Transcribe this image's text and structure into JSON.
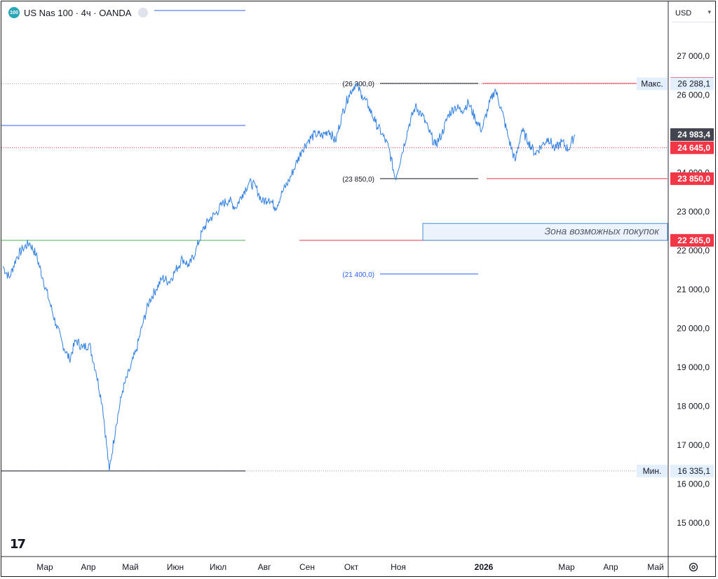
{
  "header": {
    "logo_text": "100",
    "symbol": "US Nas 100 · 4ч · OANDA"
  },
  "currency_selector": {
    "label": "USD"
  },
  "colors": {
    "price_line": "#2f7fe0",
    "red_level": "#f23645",
    "black_level": "#131722",
    "blue_level": "#2962ff",
    "green_level": "#4caf50",
    "zone_fill": "#ebf3fd",
    "zone_border": "#4a8fd6",
    "current_price_bg": "#434651"
  },
  "chart_data": {
    "type": "line",
    "title": "",
    "ylim": [
      14400,
      28000
    ],
    "x_ticks": [
      "Мар",
      "Апр",
      "Май",
      "Июн",
      "Июл",
      "Авг",
      "Сен",
      "Окт",
      "Ноя",
      "2026",
      "Мар",
      "Апр",
      "Май"
    ],
    "y_ticks": [
      "27 000,0",
      "26 000,0",
      "24 000,0",
      "23 000,0",
      "22 000,0",
      "21 000,0",
      "20 000,0",
      "19 000,0",
      "18 000,0",
      "17 000,0",
      "16 000,0",
      "15 000,0"
    ],
    "y_tick_values": [
      27000,
      26000,
      24000,
      23000,
      22000,
      21000,
      20000,
      19000,
      18000,
      17000,
      16000,
      15000
    ],
    "series": [
      {
        "values": [
          21600,
          21300,
          21800,
          22050,
          22200,
          21900,
          21300,
          20700,
          20100,
          19600,
          19200,
          19700,
          19500,
          19600,
          18900,
          18000,
          16335,
          17500,
          18400,
          18900,
          19400,
          20100,
          20700,
          21000,
          21300,
          21200,
          21500,
          21800,
          21600,
          22000,
          22500,
          22800,
          22950,
          23200,
          23300,
          23100,
          23450,
          23750,
          23650,
          23250,
          23350,
          23100,
          23500,
          23800,
          24200,
          24600,
          24850,
          25000,
          24950,
          25100,
          24800,
          25500,
          26000,
          26288,
          26000,
          25700,
          25300,
          25000,
          24650,
          23850,
          24500,
          25200,
          25700,
          25500,
          25100,
          24700,
          25000,
          25500,
          25700,
          25600,
          25800,
          25400,
          25100,
          25700,
          26150,
          25600,
          24900,
          24300,
          25100,
          24800,
          24500,
          24700,
          24900,
          24600,
          24800,
          24600,
          24983
        ]
      }
    ],
    "levels": [
      {
        "label": "(26 300,0)",
        "value": 26300
      },
      {
        "label": "(23 850,0)",
        "value": 23850
      },
      {
        "label": "(21 400,0)",
        "value": 21400
      }
    ],
    "annotations": {
      "zone_text": "Зона возможных покупок",
      "zone_low": 22265,
      "zone_high": 22700
    },
    "price_tags": {
      "top_red": "26 300,0",
      "max_label": "Макс.",
      "max_value": "26 288,1",
      "current": "24 983,4",
      "level_24645": "24 645,0",
      "level_23850": "23 850,0",
      "level_22265": "22 265,0",
      "min_label": "Мин.",
      "min_value": "16 335,1"
    },
    "level_values": {
      "top_red": 26300,
      "max": 26288.1,
      "current": 24983.4,
      "level_24645": 24645,
      "level_23850": 23850,
      "level_22265": 22265,
      "min": 16335.1
    }
  }
}
